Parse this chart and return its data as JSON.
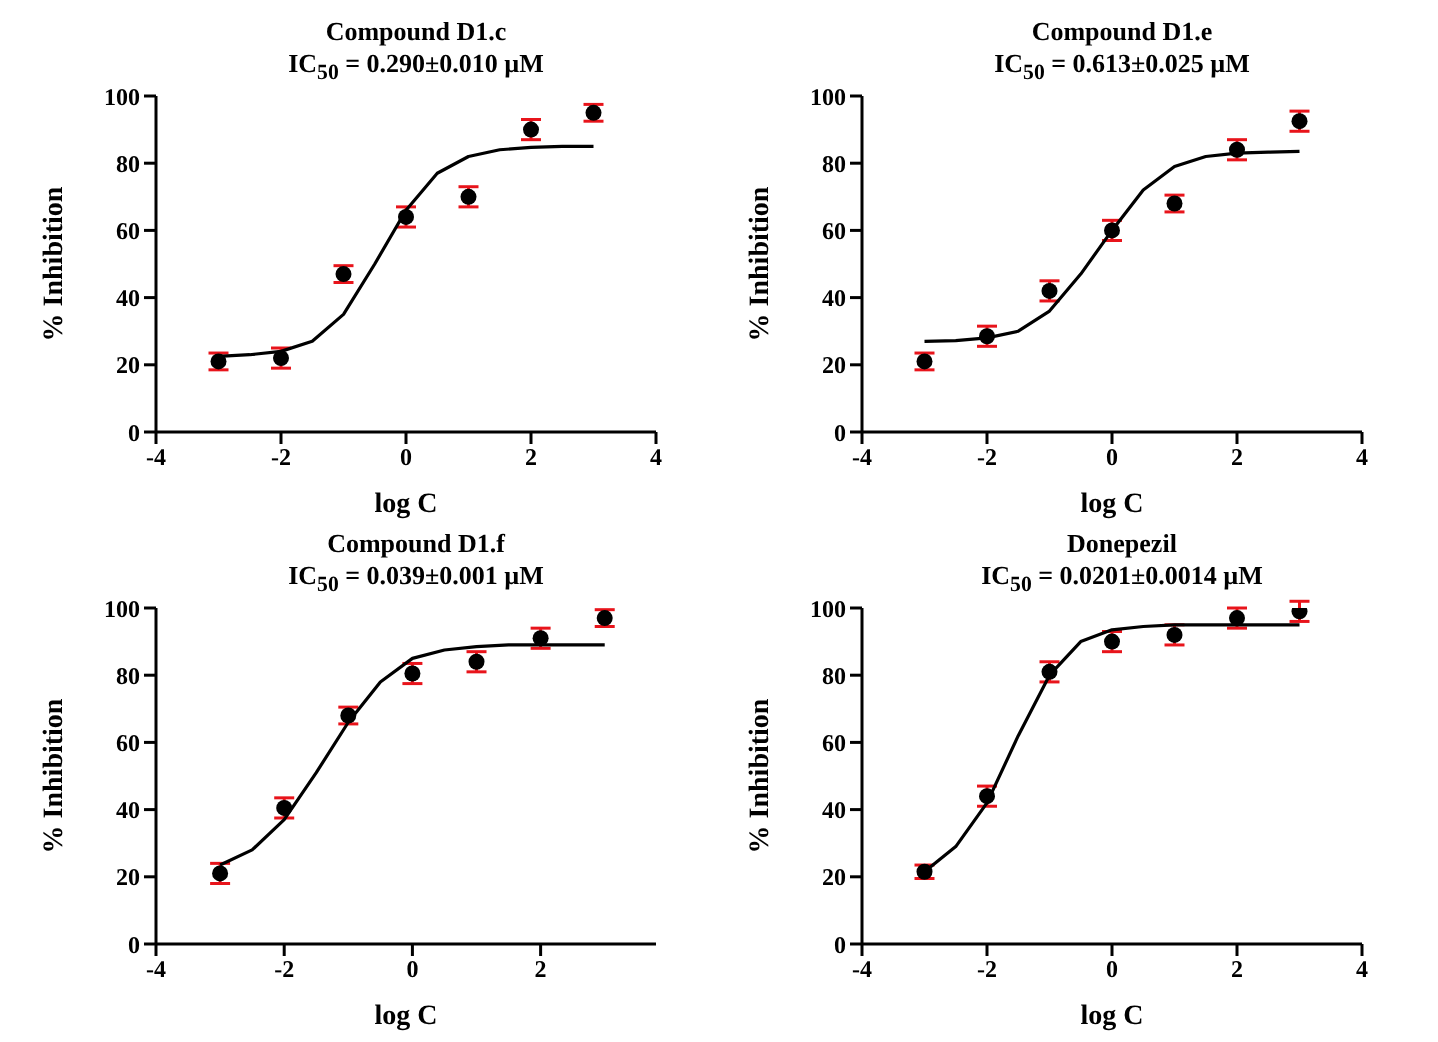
{
  "chart_data": [
    {
      "type": "scatter",
      "title": "Compound D1.c",
      "subtitle": "IC$_{50}$ = 0.290±0.010 µM",
      "xlabel": "log C",
      "ylabel": "% Inhibition",
      "xlim": [
        -4,
        4
      ],
      "xticks": [
        -4,
        -2,
        0,
        2,
        4
      ],
      "ylim": [
        0,
        100
      ],
      "yticks": [
        0,
        20,
        40,
        60,
        80,
        100
      ],
      "x": [
        -3,
        -2,
        -1,
        0,
        1,
        2,
        3
      ],
      "series": [
        {
          "color": "#000000",
          "marker": "circle",
          "values": [
            21,
            22,
            47,
            64,
            70,
            90,
            95
          ],
          "errors": [
            2.5,
            3,
            2.5,
            3,
            3,
            3,
            2.5
          ]
        },
        {
          "type": "line",
          "color": "#000000",
          "marker": "none",
          "line_style": "solid",
          "x": [
            -3,
            -2.5,
            -2,
            -1.5,
            -1,
            -0.5,
            0,
            0.5,
            1,
            1.5,
            2,
            2.5,
            3
          ],
          "values": [
            22.5,
            23,
            24,
            27,
            35,
            50,
            66,
            77,
            82,
            84,
            84.7,
            85,
            85
          ]
        }
      ]
    },
    {
      "type": "scatter",
      "title": "Compound D1.e",
      "subtitle": "IC$_{50}$ = 0.613±0.025 µM",
      "xlabel": "log C",
      "ylabel": "% Inhibition",
      "xlim": [
        -4,
        4
      ],
      "xticks": [
        -4,
        -2,
        0,
        2,
        4
      ],
      "ylim": [
        0,
        100
      ],
      "yticks": [
        0,
        20,
        40,
        60,
        80,
        100
      ],
      "x": [
        -3,
        -2,
        -1,
        0,
        1,
        2,
        3
      ],
      "series": [
        {
          "color": "#000000",
          "marker": "circle",
          "values": [
            21,
            28.5,
            42,
            60,
            68,
            84,
            92.5
          ],
          "errors": [
            2.5,
            3,
            3,
            3,
            2.5,
            3,
            3
          ]
        },
        {
          "type": "line",
          "color": "#000000",
          "marker": "none",
          "line_style": "solid",
          "x": [
            -3,
            -2.5,
            -2,
            -1.5,
            -1,
            -0.5,
            0,
            0.5,
            1,
            1.5,
            2,
            2.5,
            3
          ],
          "values": [
            27,
            27.2,
            28,
            30,
            36,
            47,
            60,
            72,
            79,
            82,
            83,
            83.3,
            83.5
          ]
        }
      ]
    },
    {
      "type": "scatter",
      "title": "Compound D1.f",
      "subtitle": "IC$_{50}$ = 0.039±0.001 µM",
      "xlabel": "log C",
      "ylabel": "% Inhibition",
      "xlim": [
        -4,
        3.8
      ],
      "xticks": [
        -4,
        -2,
        0,
        2
      ],
      "ylim": [
        0,
        100
      ],
      "yticks": [
        0,
        20,
        40,
        60,
        80,
        100
      ],
      "x": [
        -3,
        -2,
        -1,
        0,
        1,
        2,
        3
      ],
      "series": [
        {
          "color": "#000000",
          "marker": "circle",
          "values": [
            21,
            40.5,
            68,
            80.5,
            84,
            91,
            97
          ],
          "errors": [
            3,
            3,
            2.5,
            3,
            3,
            3,
            2.5
          ]
        },
        {
          "type": "line",
          "color": "#000000",
          "marker": "none",
          "line_style": "solid",
          "x": [
            -3,
            -2.5,
            -2,
            -1.5,
            -1,
            -0.5,
            0,
            0.5,
            1,
            1.5,
            2,
            3
          ],
          "values": [
            23.5,
            28,
            37,
            51,
            66,
            78,
            85,
            87.5,
            88.5,
            89,
            89,
            89
          ]
        }
      ]
    },
    {
      "type": "scatter",
      "title": "Donepezil",
      "subtitle": "IC$_{50}$ = 0.0201±0.0014 µM",
      "xlabel": "log C",
      "ylabel": "% Inhibition",
      "xlim": [
        -4,
        4
      ],
      "xticks": [
        -4,
        -2,
        0,
        2,
        4
      ],
      "ylim": [
        0,
        100
      ],
      "yticks": [
        0,
        20,
        40,
        60,
        80,
        100
      ],
      "x": [
        -3,
        -2,
        -1,
        0,
        1,
        2,
        3
      ],
      "series": [
        {
          "color": "#000000",
          "marker": "circle",
          "values": [
            21.5,
            44,
            81,
            90,
            92,
            97,
            99
          ],
          "errors": [
            2,
            3,
            3,
            3,
            3,
            3,
            3
          ]
        },
        {
          "type": "line",
          "color": "#000000",
          "marker": "none",
          "line_style": "solid",
          "x": [
            -3,
            -2.5,
            -2,
            -1.5,
            -1,
            -0.5,
            0,
            0.5,
            1,
            2,
            3
          ],
          "values": [
            21.5,
            29,
            42,
            62,
            80,
            90,
            93.5,
            94.5,
            95,
            95,
            95
          ]
        }
      ]
    }
  ]
}
